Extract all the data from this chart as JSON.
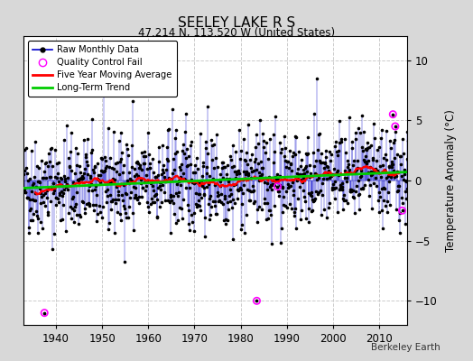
{
  "title": "SEELEY LAKE R S",
  "subtitle": "47.214 N, 113.520 W (United States)",
  "ylabel": "Temperature Anomaly (°C)",
  "credit": "Berkeley Earth",
  "xlim": [
    1933,
    2016
  ],
  "ylim": [
    -12,
    12
  ],
  "yticks": [
    -10,
    -5,
    0,
    5,
    10
  ],
  "xticks": [
    1940,
    1950,
    1960,
    1970,
    1980,
    1990,
    2000,
    2010
  ],
  "fig_facecolor": "#d8d8d8",
  "plot_facecolor": "#ffffff",
  "grid_color": "#cccccc",
  "line_color": "#0000cc",
  "ma_color": "#ff0000",
  "trend_color": "#00cc00",
  "qc_color": "#ff00ff",
  "start_year": 1933,
  "end_year": 2016,
  "seed": 42
}
